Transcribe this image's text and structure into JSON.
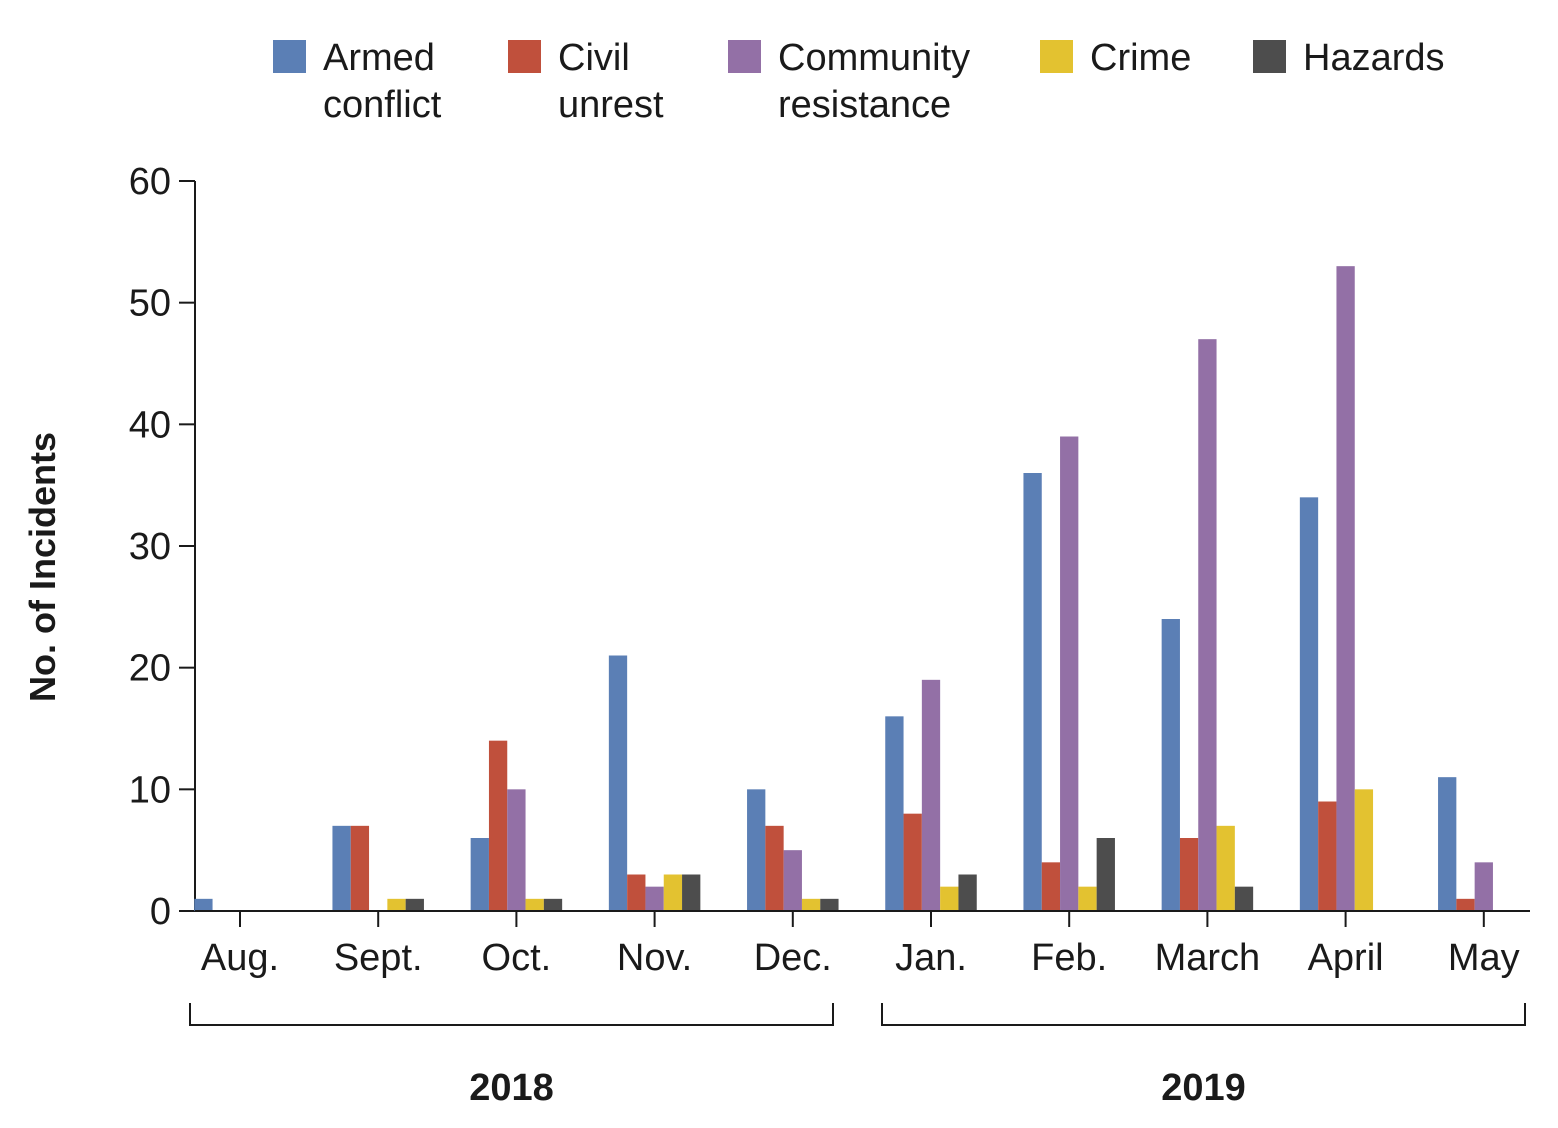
{
  "chart_data": {
    "type": "bar",
    "ylabel": "No. of Incidents",
    "xlabel": "",
    "ylim": [
      0,
      60
    ],
    "yticks": [
      0,
      10,
      20,
      30,
      40,
      50,
      60
    ],
    "grid": false,
    "legend_position": "top",
    "categories": [
      "Aug.",
      "Sept.",
      "Oct.",
      "Nov.",
      "Dec.",
      "Jan.",
      "Feb.",
      "March",
      "April",
      "May"
    ],
    "year_groups": [
      {
        "label": "2018",
        "start": 0,
        "end": 4
      },
      {
        "label": "2019",
        "start": 5,
        "end": 9
      }
    ],
    "series": [
      {
        "name": "Armed conflict",
        "legend_lines": [
          "Armed",
          "conflict"
        ],
        "color": "#5b7fb5",
        "values": [
          1,
          7,
          6,
          21,
          10,
          16,
          36,
          24,
          34,
          11
        ]
      },
      {
        "name": "Civil unrest",
        "legend_lines": [
          "Civil",
          "unrest"
        ],
        "color": "#c0503c",
        "values": [
          0,
          7,
          14,
          3,
          7,
          8,
          4,
          6,
          9,
          1
        ]
      },
      {
        "name": "Community resistance",
        "legend_lines": [
          "Community",
          "resistance"
        ],
        "color": "#9370a6",
        "values": [
          0,
          0,
          10,
          2,
          5,
          19,
          39,
          47,
          53,
          4
        ]
      },
      {
        "name": "Crime",
        "legend_lines": [
          "Crime"
        ],
        "color": "#e3c230",
        "values": [
          0,
          1,
          1,
          3,
          1,
          2,
          2,
          7,
          10,
          0
        ]
      },
      {
        "name": "Hazards",
        "legend_lines": [
          "Hazards"
        ],
        "color": "#4d4d4d",
        "values": [
          0,
          1,
          1,
          3,
          1,
          3,
          6,
          2,
          0,
          0
        ]
      }
    ]
  }
}
